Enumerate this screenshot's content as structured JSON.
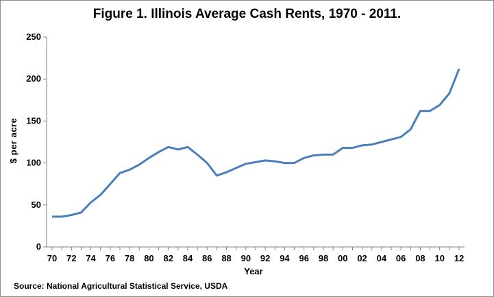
{
  "chart_data": {
    "type": "line",
    "title": "Figure 1.  Illinois Average Cash Rents, 1970 - 2011.",
    "xlabel": "Year",
    "ylabel": "$ per acre",
    "source": "Source: National Agricultural Statistical Service, USDA",
    "ylim": [
      0,
      250
    ],
    "yticks": [
      0,
      50,
      100,
      150,
      200,
      250
    ],
    "xtick_labels": [
      "70",
      "72",
      "74",
      "76",
      "78",
      "80",
      "82",
      "84",
      "86",
      "88",
      "90",
      "92",
      "94",
      "96",
      "98",
      "00",
      "02",
      "04",
      "06",
      "08",
      "10",
      "12"
    ],
    "grid": false,
    "legend": "none",
    "line_color": "#4a7ebb",
    "series": [
      {
        "x": [
          "70",
          "71",
          "72",
          "73",
          "74",
          "75",
          "76",
          "77",
          "78",
          "79",
          "80",
          "81",
          "82",
          "83",
          "84",
          "85",
          "86",
          "87",
          "88",
          "89",
          "90",
          "91",
          "92",
          "93",
          "94",
          "95",
          "96",
          "97",
          "98",
          "99",
          "00",
          "01",
          "02",
          "03",
          "04",
          "05",
          "06",
          "07",
          "08",
          "09",
          "10",
          "11",
          "12"
        ],
        "values": [
          36,
          36,
          38,
          41,
          53,
          62,
          75,
          88,
          92,
          98,
          106,
          113,
          119,
          116,
          119,
          110,
          100,
          85,
          89,
          94,
          99,
          101,
          103,
          102,
          100,
          100,
          106,
          109,
          110,
          110,
          118,
          118,
          121,
          122,
          125,
          128,
          131,
          140,
          162,
          162,
          169,
          183,
          212
        ]
      }
    ]
  }
}
